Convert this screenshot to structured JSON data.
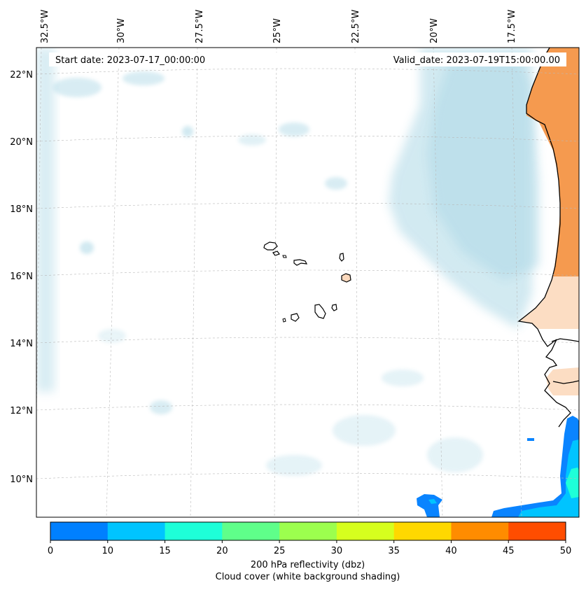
{
  "map": {
    "start_label": "Start date: 2023-07-17_00:00:00",
    "valid_label": "Valid_date: 2023-07-19T15:00:00.00",
    "lon_ticks": [
      "32.5°W",
      "30°W",
      "27.5°W",
      "25°W",
      "22.5°W",
      "20°W",
      "17.5°W"
    ],
    "lat_ticks": [
      "22°N",
      "20°N",
      "18°N",
      "16°N",
      "14°N",
      "12°N",
      "10°N"
    ]
  },
  "colorbar": {
    "colors": [
      "#0080ff",
      "#00c4ff",
      "#1effd8",
      "#5fff8a",
      "#9cff4e",
      "#d6ff1e",
      "#ffd800",
      "#ff8c00",
      "#ff4d00"
    ],
    "tick_labels": [
      "0",
      "10",
      "15",
      "20",
      "25",
      "30",
      "35",
      "40",
      "45",
      "50"
    ],
    "title_line1": "200 hPa reflectivity (dbz)",
    "title_line2": "Cloud cover (white background shading)"
  },
  "style": {
    "cloud_color": "#a9d6e5",
    "land_orange": "#f59a4f",
    "land_peach": "#fcd9bd",
    "echo_blue": "#0a84ff",
    "echo_cyan": "#00c4ff",
    "echo_teal": "#1effd8"
  }
}
